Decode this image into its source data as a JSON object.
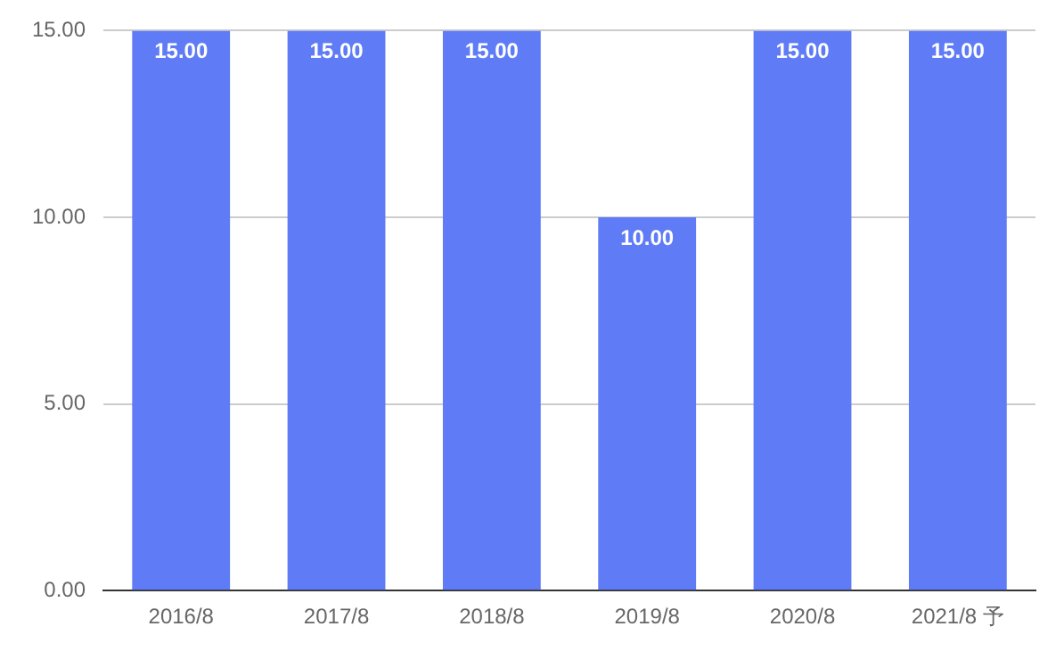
{
  "chart_data": {
    "type": "bar",
    "categories": [
      "2016/8",
      "2017/8",
      "2018/8",
      "2019/8",
      "2020/8",
      "2021/8 予"
    ],
    "values": [
      15,
      15,
      15,
      10,
      15,
      15
    ],
    "value_labels": [
      "15.00",
      "15.00",
      "15.00",
      "10.00",
      "15.00",
      "15.00"
    ],
    "color": "#5f7cf6",
    "ylim": [
      0,
      15
    ],
    "yticks": [
      {
        "value": 0,
        "label": "0.00"
      },
      {
        "value": 5,
        "label": "5.00"
      },
      {
        "value": 10,
        "label": "10.00"
      },
      {
        "value": 15,
        "label": "15.00"
      }
    ],
    "grid": "y",
    "legend": false
  }
}
